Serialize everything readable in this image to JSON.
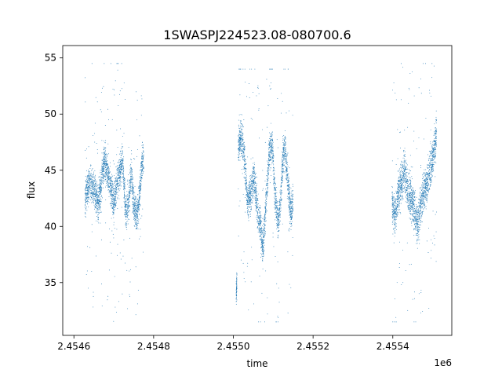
{
  "chart_data": {
    "type": "scatter",
    "title": "1SWASPJ224523.08-080700.6",
    "xlabel": "time",
    "ylabel": "flux",
    "x_offset_label": "1e6",
    "x_tick_labels": [
      "2.4546",
      "2.4548",
      "2.4550",
      "2.4552",
      "2.4554"
    ],
    "x_ticks": [
      2454600,
      2454800,
      2455000,
      2455200,
      2455400
    ],
    "y_ticks": [
      35,
      40,
      45,
      50,
      55
    ],
    "xlim": [
      2454572,
      2455548
    ],
    "ylim": [
      30.3,
      56.1
    ],
    "grid": false,
    "marker_color": "#1f77b4",
    "series": [
      {
        "segments": [
          {
            "x0": 2454628,
            "x1": 2454775,
            "anchors": [
              [
                2454628,
                42.5
              ],
              [
                2454640,
                44.0
              ],
              [
                2454652,
                43.0
              ],
              [
                2454660,
                42.0
              ],
              [
                2454668,
                43.5
              ],
              [
                2454676,
                46.0
              ],
              [
                2454684,
                45.0
              ],
              [
                2454692,
                43.5
              ],
              [
                2454700,
                42.0
              ],
              [
                2454708,
                44.0
              ],
              [
                2454716,
                45.0
              ],
              [
                2454722,
                46.0
              ],
              [
                2454730,
                41.0
              ],
              [
                2454738,
                42.5
              ],
              [
                2454744,
                45.0
              ],
              [
                2454750,
                42.0
              ],
              [
                2454758,
                41.0
              ],
              [
                2454764,
                42.5
              ],
              [
                2454770,
                45.5
              ],
              [
                2454775,
                46.0
              ]
            ],
            "noise": 0.8,
            "outlier_lo": 31.5,
            "outlier_hi": 54.5
          },
          {
            "x0": 2455007,
            "x1": 2455009,
            "anchors": [
              [
                2455007,
                34.0
              ],
              [
                2455009,
                35.0
              ]
            ],
            "noise": 0.5,
            "outlier_lo": 34.0,
            "outlier_hi": 35.0
          },
          {
            "x0": 2455012,
            "x1": 2455150,
            "anchors": [
              [
                2455012,
                47.0
              ],
              [
                2455020,
                48.0
              ],
              [
                2455028,
                46.0
              ],
              [
                2455036,
                42.0
              ],
              [
                2455044,
                43.0
              ],
              [
                2455052,
                44.5
              ],
              [
                2455060,
                41.5
              ],
              [
                2455068,
                40.0
              ],
              [
                2455074,
                38.0
              ],
              [
                2455082,
                42.0
              ],
              [
                2455090,
                46.5
              ],
              [
                2455098,
                47.5
              ],
              [
                2455104,
                43.0
              ],
              [
                2455112,
                40.5
              ],
              [
                2455118,
                42.0
              ],
              [
                2455124,
                46.0
              ],
              [
                2455130,
                47.0
              ],
              [
                2455138,
                43.5
              ],
              [
                2455144,
                41.0
              ],
              [
                2455150,
                42.5
              ]
            ],
            "noise": 0.8,
            "outlier_lo": 31.5,
            "outlier_hi": 54.0
          },
          {
            "x0": 2455398,
            "x1": 2455510,
            "anchors": [
              [
                2455398,
                42.0
              ],
              [
                2455406,
                41.0
              ],
              [
                2455414,
                43.0
              ],
              [
                2455422,
                44.0
              ],
              [
                2455430,
                45.0
              ],
              [
                2455438,
                43.0
              ],
              [
                2455446,
                42.5
              ],
              [
                2455454,
                41.5
              ],
              [
                2455462,
                40.0
              ],
              [
                2455470,
                42.0
              ],
              [
                2455478,
                43.0
              ],
              [
                2455486,
                44.0
              ],
              [
                2455494,
                45.0
              ],
              [
                2455502,
                46.5
              ],
              [
                2455510,
                48.5
              ]
            ],
            "noise": 0.9,
            "outlier_lo": 31.5,
            "outlier_hi": 54.5
          }
        ]
      }
    ]
  }
}
